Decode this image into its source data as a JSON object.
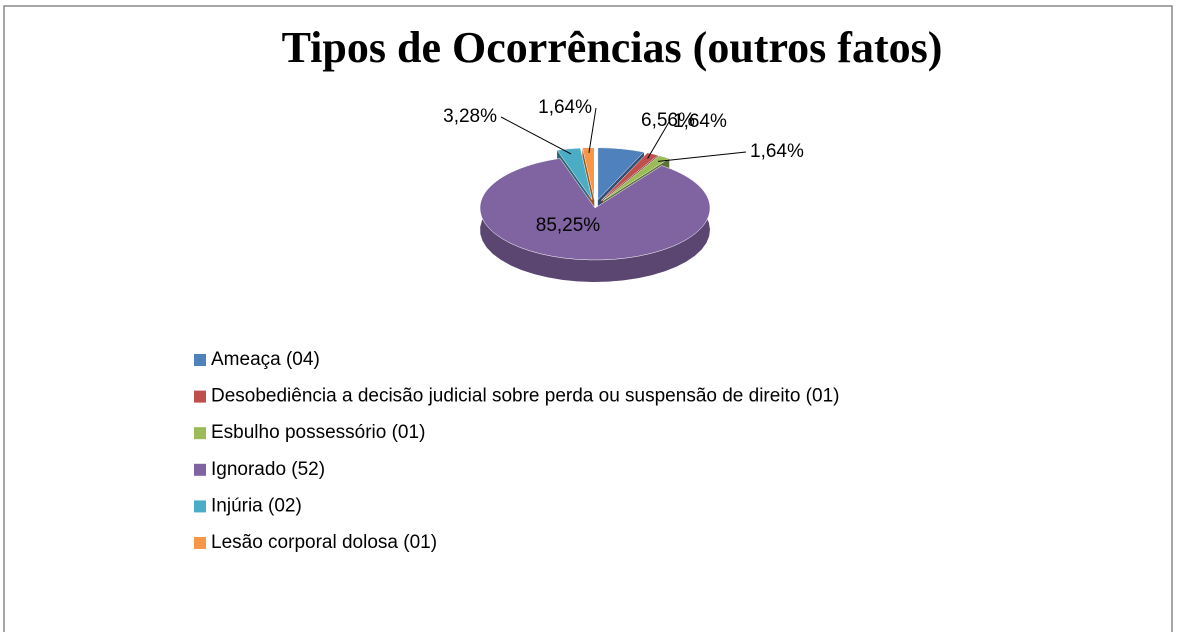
{
  "chart_data": {
    "type": "pie",
    "title": "Tipos de Ocorrências (outros fatos)",
    "categories": [
      "Ameaça (04)",
      "Desobediência a decisão judicial sobre perda ou suspensão de direito (01)",
      "Esbulho possessório (01)",
      "Ignorado (52)",
      "Injúria (02)",
      "Lesão corporal dolosa (01)"
    ],
    "values": [
      6.56,
      1.64,
      1.64,
      85.25,
      3.28,
      1.64
    ],
    "value_labels": [
      "6,56%",
      "1,64%",
      "1,64%",
      "85,25%",
      "3,28%",
      "1,64%"
    ],
    "colors": [
      "#4f81bd",
      "#c0504d",
      "#9bbb59",
      "#8064a2",
      "#4bacc6",
      "#f79646"
    ]
  }
}
